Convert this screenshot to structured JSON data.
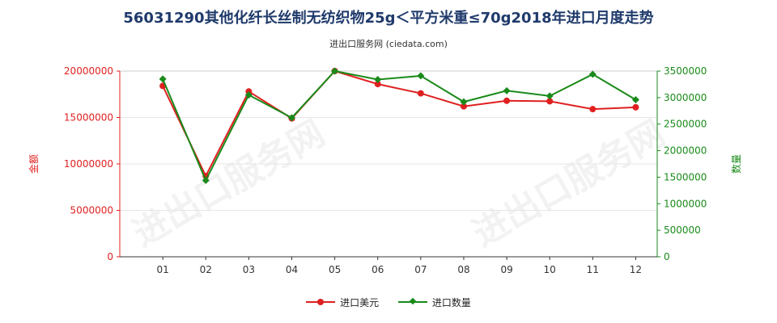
{
  "chart_data": {
    "type": "line",
    "title": "56031290其他化纤长丝制无纺织物25g＜平方米重≤70g2018年进口月度走势",
    "subtitle": "进出口服务网 (ciedata.com)",
    "categories": [
      "01",
      "02",
      "03",
      "04",
      "05",
      "06",
      "07",
      "08",
      "09",
      "10",
      "11",
      "12"
    ],
    "left_axis": {
      "label": "金额",
      "ylim": [
        0,
        20000000
      ],
      "ticks": [
        0,
        5000000,
        10000000,
        15000000,
        20000000
      ],
      "tick_labels": [
        "0",
        "5000000",
        "10000000",
        "15000000",
        "20000000"
      ],
      "color": "#e02020"
    },
    "right_axis": {
      "label": "数量",
      "ylim": [
        0,
        3500000
      ],
      "ticks": [
        0,
        500000,
        1000000,
        1500000,
        2000000,
        2500000,
        3000000,
        3500000
      ],
      "tick_labels": [
        "0",
        "500000",
        "1000000",
        "1500000",
        "2000000",
        "2500000",
        "3000000",
        "3500000"
      ],
      "color": "#1a8a1a"
    },
    "series": [
      {
        "name": "进口美元",
        "axis": "left",
        "color": "#e02020",
        "marker": "circle",
        "values": [
          18400000,
          8700000,
          17800000,
          14900000,
          20000000,
          18600000,
          17600000,
          16200000,
          16800000,
          16750000,
          15900000,
          16100000
        ]
      },
      {
        "name": "进口数量",
        "axis": "right",
        "color": "#1a8a1a",
        "marker": "diamond",
        "values": [
          3350000,
          1440000,
          3050000,
          2620000,
          3500000,
          3340000,
          3410000,
          2920000,
          3130000,
          3030000,
          3440000,
          2960000
        ]
      }
    ],
    "watermark": "进出口服务网"
  }
}
